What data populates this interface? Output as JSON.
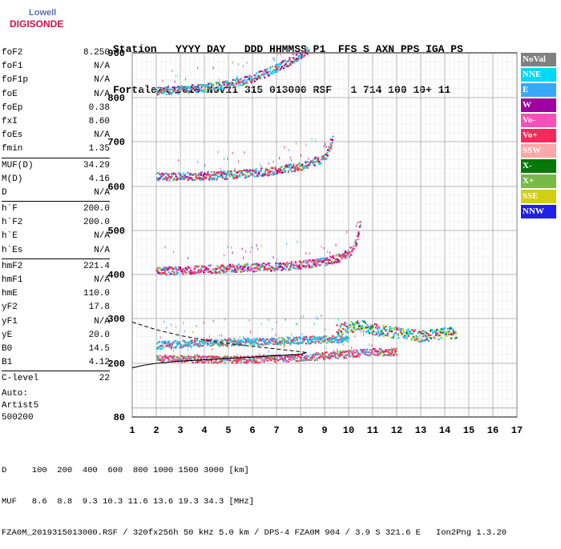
{
  "logo": {
    "line1": "Lowell",
    "line2": "DIGISONDE"
  },
  "header": {
    "line1": "Station   YYYY DAY   DDD HHMMSS P1  FFS S AXN PPS IGA PS",
    "line2": "Fortaleza 2019 Nov11 315 013000 RSF   1 714 100 10+ 11"
  },
  "params": [
    {
      "name": "foF2",
      "value": "8.250"
    },
    {
      "name": "foF1",
      "value": "N/A"
    },
    {
      "name": "foF1p",
      "value": "N/A"
    },
    {
      "name": "foE",
      "value": "N/A"
    },
    {
      "name": "foEp",
      "value": "0.38"
    },
    {
      "name": "fxI",
      "value": "8.60"
    },
    {
      "name": "foEs",
      "value": "N/A"
    },
    {
      "name": "fmin",
      "value": "1.35"
    },
    {
      "sep": true
    },
    {
      "name": "MUF(D)",
      "value": "34.29"
    },
    {
      "name": "M(D)",
      "value": "4.16"
    },
    {
      "name": "D",
      "value": "N/A"
    },
    {
      "sep": true
    },
    {
      "name": "h`F",
      "value": "200.0"
    },
    {
      "name": "h`F2",
      "value": "200.0"
    },
    {
      "name": "h`E",
      "value": "N/A"
    },
    {
      "name": "h`Es",
      "value": "N/A"
    },
    {
      "sep": true
    },
    {
      "name": "hmF2",
      "value": "221.4"
    },
    {
      "name": "hmF1",
      "value": "N/A"
    },
    {
      "name": "hmE",
      "value": "110.0"
    },
    {
      "name": "yF2",
      "value": "17.8"
    },
    {
      "name": "yF1",
      "value": "N/A"
    },
    {
      "name": "yE",
      "value": "20.0"
    },
    {
      "name": "B0",
      "value": "14.5"
    },
    {
      "name": "B1",
      "value": "4.12"
    },
    {
      "sep": true
    },
    {
      "name": "C-level",
      "value": "22"
    }
  ],
  "auto": {
    "line1": "Auto:",
    "line2": "Artist5",
    "line3": "500200"
  },
  "legend": [
    {
      "label": "NoVal",
      "color": "#808080"
    },
    {
      "label": "NNE",
      "color": "#00d8f8"
    },
    {
      "label": "E",
      "color": "#38a8f8"
    },
    {
      "label": "W",
      "color": "#a000a0"
    },
    {
      "label": "Vo-",
      "color": "#f850b8"
    },
    {
      "label": "Vo+",
      "color": "#f82858"
    },
    {
      "label": "SSW",
      "color": "#f8a8a8"
    },
    {
      "label": "X-",
      "color": "#087808"
    },
    {
      "label": "X+",
      "color": "#78b848"
    },
    {
      "label": "SSE",
      "color": "#d0d010"
    },
    {
      "label": "NNW",
      "color": "#2020e8"
    }
  ],
  "footer": {
    "line1": "D     100  200  400  600  800 1000 1500 3000 [km]",
    "line2": "MUF   8.6  8.8  9.3 10.3 11.6 13.6 19.3 34.3 [MHz]",
    "line3": "FZA0M_2019315013000.RSF / 320fx256h 50 kHz 5.0 km / DPS-4 FZA0M 904 / 3.9 S 321.6 E   Ion2Png 1.3.20"
  },
  "chart_data": {
    "type": "scatter",
    "x_ticks": [
      "1",
      "2",
      "3",
      "4",
      "5",
      "6",
      "7",
      "8",
      "9",
      "10",
      "11",
      "12",
      "13",
      "14",
      "15",
      "16",
      "17"
    ],
    "y_ticks": [
      "80",
      "200",
      "300",
      "400",
      "500",
      "600",
      "700",
      "800",
      "900"
    ],
    "xlim": [
      1,
      17
    ],
    "ylim_labels": [
      80,
      900
    ],
    "grid": true,
    "legend_placement": "right",
    "traces": [
      {
        "name": "F2 O-trace",
        "x": [
          2.0,
          3.0,
          4.0,
          5.0,
          6.0,
          7.0,
          8.0,
          8.6,
          9.0,
          9.6,
          10.0,
          10.4,
          10.6,
          11.0,
          11.5,
          12.0
        ],
        "y": [
          208,
          207,
          206,
          205,
          206,
          208,
          210,
          212,
          214,
          216,
          218,
          220,
          222,
          222,
          222,
          222
        ]
      },
      {
        "name": "F2 X-trace",
        "x": [
          2.0,
          3.0,
          4.0,
          5.0,
          6.0,
          7.0,
          8.0,
          9.0,
          10.0
        ],
        "y": [
          237,
          240,
          242,
          244,
          245,
          246,
          248,
          250,
          252
        ]
      },
      {
        "name": "2nd hop",
        "x": [
          2.0,
          3.0,
          4.0,
          5.0,
          6.0,
          7.0,
          8.0,
          9.0,
          9.5,
          10.0,
          10.3,
          10.5
        ],
        "y": [
          405,
          405,
          408,
          410,
          412,
          414,
          418,
          426,
          432,
          445,
          470,
          520
        ]
      },
      {
        "name": "3rd hop",
        "x": [
          2.0,
          3.0,
          4.0,
          5.0,
          6.0,
          7.0,
          8.0,
          9.0,
          9.3
        ],
        "y": [
          618,
          618,
          620,
          622,
          626,
          632,
          642,
          660,
          700
        ]
      },
      {
        "name": "4th hop",
        "x": [
          2.0,
          3.0,
          4.0,
          5.0,
          6.0,
          7.0,
          8.0,
          8.3
        ],
        "y": [
          812,
          814,
          818,
          826,
          840,
          862,
          892,
          906
        ]
      },
      {
        "name": "Es spread",
        "x": [
          9.5,
          10.0,
          10.5,
          11.0,
          11.5,
          12.0,
          12.5,
          13.0,
          13.5,
          14.0,
          14.5
        ],
        "y": [
          270,
          275,
          280,
          270,
          265,
          262,
          258,
          255,
          258,
          262,
          262
        ]
      }
    ],
    "profile_solid": {
      "x": [
        1.0,
        1.5,
        2.0,
        3.0,
        4.0,
        5.0,
        6.0,
        7.0,
        8.0,
        8.25
      ],
      "y": [
        190,
        196,
        200,
        205,
        208,
        211,
        214,
        217,
        220,
        224
      ]
    },
    "profile_dashed": {
      "x": [
        1.0,
        2.0,
        3.0,
        4.0,
        5.0,
        6.0,
        7.0,
        8.0,
        8.25
      ],
      "y": [
        292,
        275,
        262,
        252,
        244,
        238,
        232,
        226,
        224
      ]
    }
  }
}
